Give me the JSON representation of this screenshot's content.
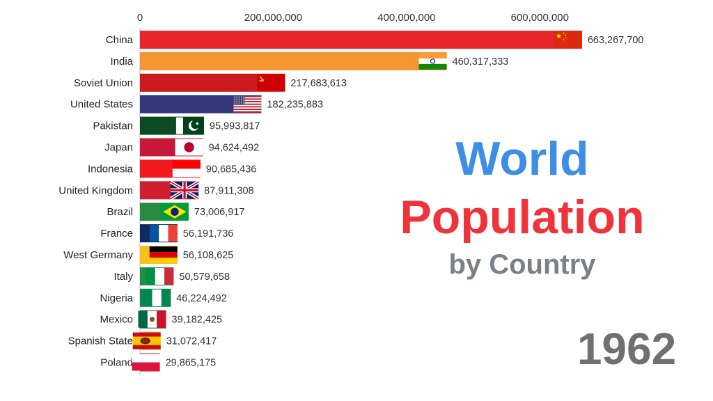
{
  "title": {
    "line1": "World",
    "line2": "Population",
    "line3": "by Country",
    "line1_color": "#3d8fe6",
    "line2_color": "#f0333a",
    "line3_color": "#7b8087"
  },
  "year": "1962",
  "year_color": "#707070",
  "chart_data": {
    "type": "bar",
    "orientation": "horizontal",
    "categories": [
      "China",
      "India",
      "Soviet Union",
      "United States",
      "Pakistan",
      "Japan",
      "Indonesia",
      "United Kingdom",
      "Brazil",
      "France",
      "West Germany",
      "Italy",
      "Nigeria",
      "Mexico",
      "Spanish State",
      "Poland"
    ],
    "values": [
      663267700,
      460317333,
      217683613,
      182235883,
      95993817,
      94624492,
      90685436,
      87911308,
      73006917,
      56191736,
      56108625,
      50579658,
      46224492,
      39182425,
      31072417,
      29865175
    ],
    "value_labels": [
      "663,267,700",
      "460,317,333",
      "217,683,613",
      "182,235,883",
      "95,993,817",
      "94,624,492",
      "90,685,436",
      "87,911,308",
      "73,006,917",
      "56,191,736",
      "56,108,625",
      "50,579,658",
      "46,224,492",
      "39,182,425",
      "31,072,417",
      "29,865,175"
    ],
    "colors": [
      "#e8262b",
      "#f4952f",
      "#cc1a1f",
      "#33367a",
      "#0c4b23",
      "#c8183a",
      "#f2191f",
      "#cf1f2f",
      "#2c8a40",
      "#0e2a5e",
      "#f9c21a",
      "#1f8e45",
      "#0b8450",
      "#0d5c3d",
      "#f5b50a",
      "#d5263f"
    ],
    "flags": [
      "china-flag",
      "india-flag",
      "soviet-union-flag",
      "united-states-flag",
      "pakistan-flag",
      "japan-flag",
      "indonesia-flag",
      "united-kingdom-flag",
      "brazil-flag",
      "france-flag",
      "west-germany-flag",
      "italy-flag",
      "nigeria-flag",
      "mexico-flag",
      "spanish-state-flag",
      "poland-flag"
    ],
    "xaxis_ticks": [
      0,
      200000000,
      400000000,
      600000000
    ],
    "xaxis_tick_labels": [
      "0",
      "200,000,000",
      "400,000,000",
      "600,000,000"
    ],
    "xlim": [
      0,
      700000000
    ],
    "xaxis_position": "top",
    "grid": false
  }
}
